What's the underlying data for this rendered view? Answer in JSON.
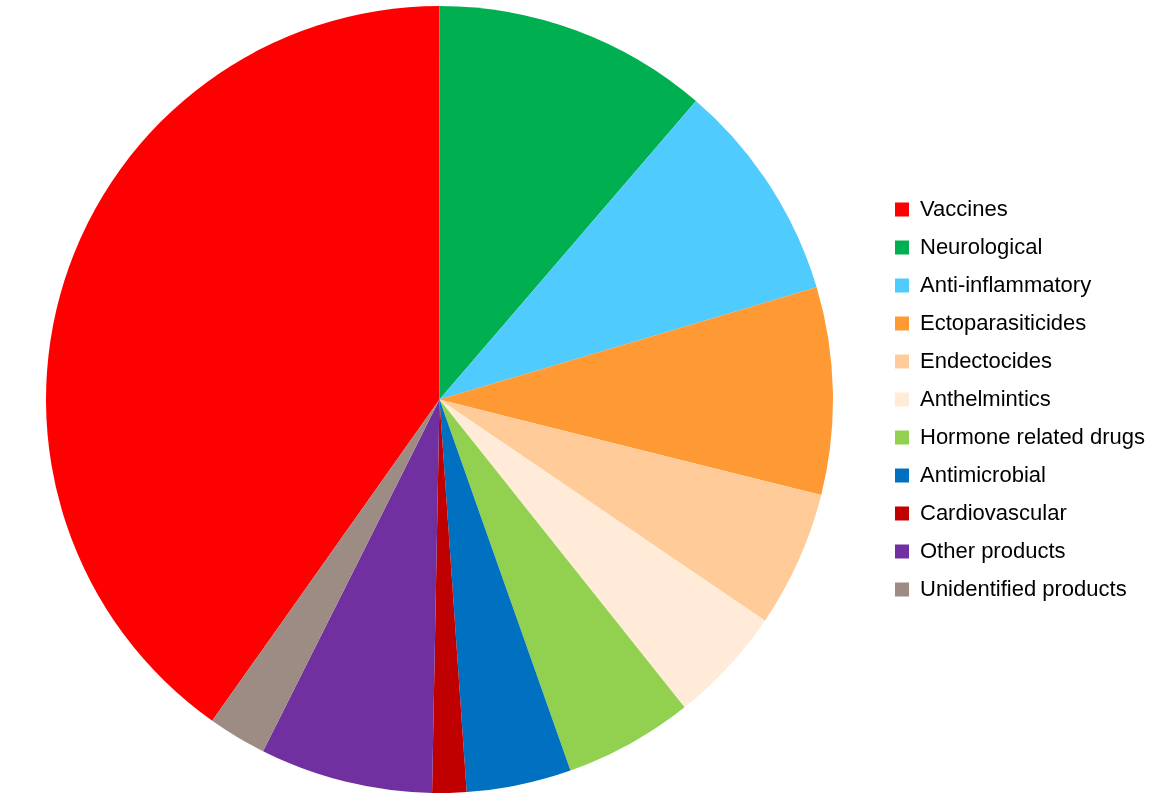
{
  "chart_data": {
    "type": "pie",
    "categories": [
      "Vaccines",
      "Neurological",
      "Anti-inflammatory",
      "Ectoparasiticides",
      "Endectocides",
      "Anthelmintics",
      "Hormone related drugs",
      "Antimicrobial",
      "Cardiovascular",
      "Other products",
      "Unidentified products"
    ],
    "values": [
      40.2,
      11.3,
      9.1,
      8.5,
      5.6,
      4.8,
      5.3,
      4.3,
      1.4,
      7.1,
      2.4
    ],
    "colors": [
      "#ff0000",
      "#00b050",
      "#4fcbfe",
      "#ff9933",
      "#ffcc99",
      "#ffebd7",
      "#92d050",
      "#0070c0",
      "#c00000",
      "#7030a0",
      "#9c8c84"
    ],
    "legend": "right"
  }
}
